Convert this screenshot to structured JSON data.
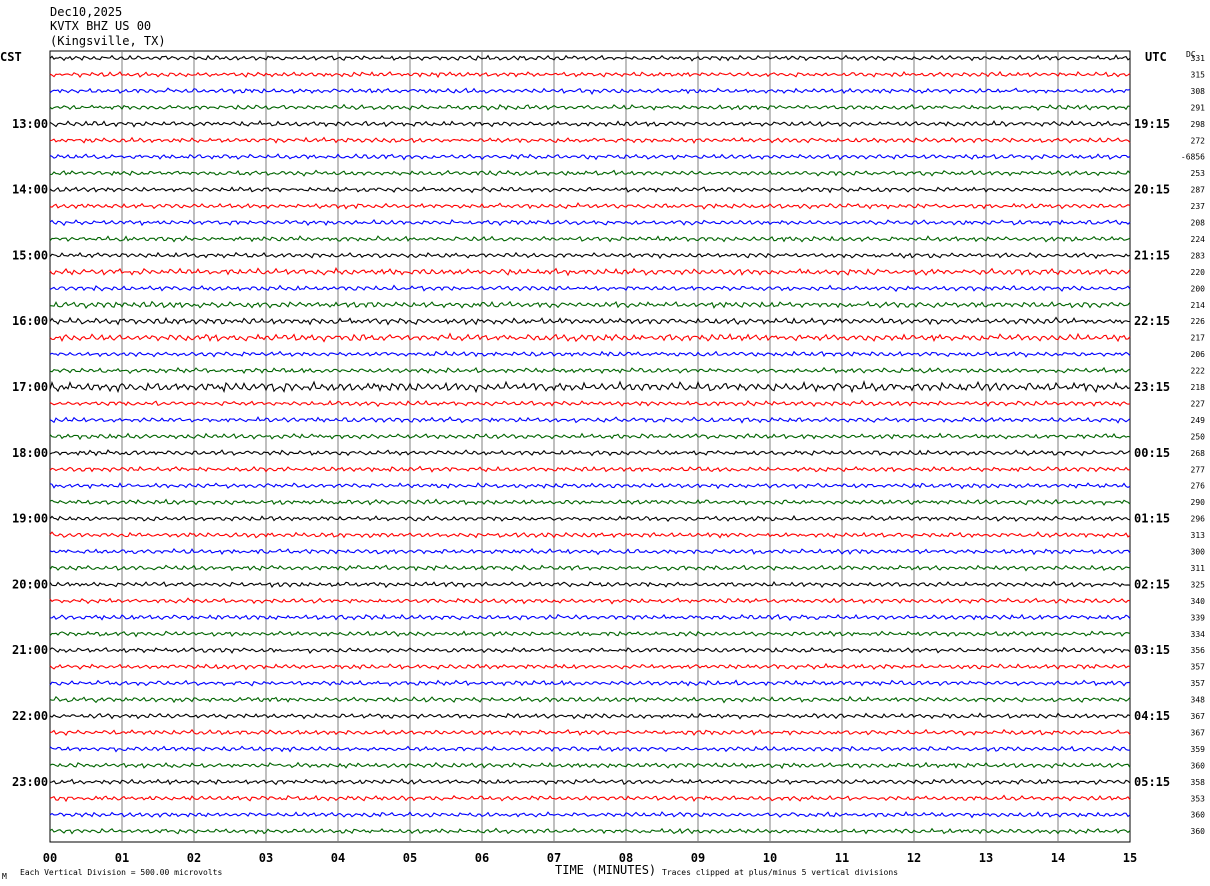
{
  "header": {
    "date": "Dec10,2025",
    "station": "KVTX BHZ US 00",
    "location": "(Kingsville, TX)"
  },
  "left_tz_label": "CST",
  "right_tz_label": "UTC",
  "dc_label": "DC",
  "footer": {
    "scale_note": "Each Vertical Division =  500.00 microvolts",
    "clip_note": "Traces clipped at plus/minus 5 vertical divisions",
    "corner_mark": "M"
  },
  "chart_data": {
    "type": "line",
    "title": "KVTX BHZ US 00",
    "xlabel": "TIME (MINUTES)",
    "x_ticks": [
      "00",
      "01",
      "02",
      "03",
      "04",
      "05",
      "06",
      "07",
      "08",
      "09",
      "10",
      "11",
      "12",
      "13",
      "14",
      "15"
    ],
    "xlim": [
      0,
      15
    ],
    "trace_colors": [
      "#000000",
      "#ff0000",
      "#0000ff",
      "#006400"
    ],
    "hour_labels_left": [
      "13:00",
      "14:00",
      "15:00",
      "16:00",
      "17:00",
      "18:00",
      "19:00",
      "20:00",
      "21:00",
      "22:00",
      "23:00"
    ],
    "hour_labels_right": [
      "19:15",
      "20:15",
      "21:15",
      "22:15",
      "23:15",
      "00:15",
      "01:15",
      "02:15",
      "03:15",
      "04:15",
      "05:15"
    ],
    "dc_offsets": [
      "331",
      "315",
      "308",
      "291",
      "298",
      "272",
      "-6856",
      "253",
      "287",
      "237",
      "208",
      "224",
      "283",
      "220",
      "200",
      "214",
      "226",
      "217",
      "206",
      "222",
      "218",
      "227",
      "249",
      "250",
      "268",
      "277",
      "276",
      "290",
      "296",
      "313",
      "300",
      "311",
      "325",
      "340",
      "339",
      "334",
      "356",
      "357",
      "357",
      "348",
      "367",
      "367",
      "359",
      "360",
      "358",
      "353",
      "360",
      "360"
    ],
    "noise_amplitude": [
      1,
      1,
      1,
      1,
      1,
      1,
      1,
      1,
      1,
      1,
      1,
      1,
      1,
      1.3,
      1,
      1.2,
      1.3,
      1.4,
      1,
      1,
      2,
      1,
      1,
      1,
      1,
      1,
      1,
      1,
      1,
      1,
      1,
      1,
      1,
      1,
      1,
      1,
      1,
      1,
      1,
      1,
      1,
      1,
      1,
      1,
      1,
      1,
      1,
      1
    ],
    "trace_count": 48
  }
}
